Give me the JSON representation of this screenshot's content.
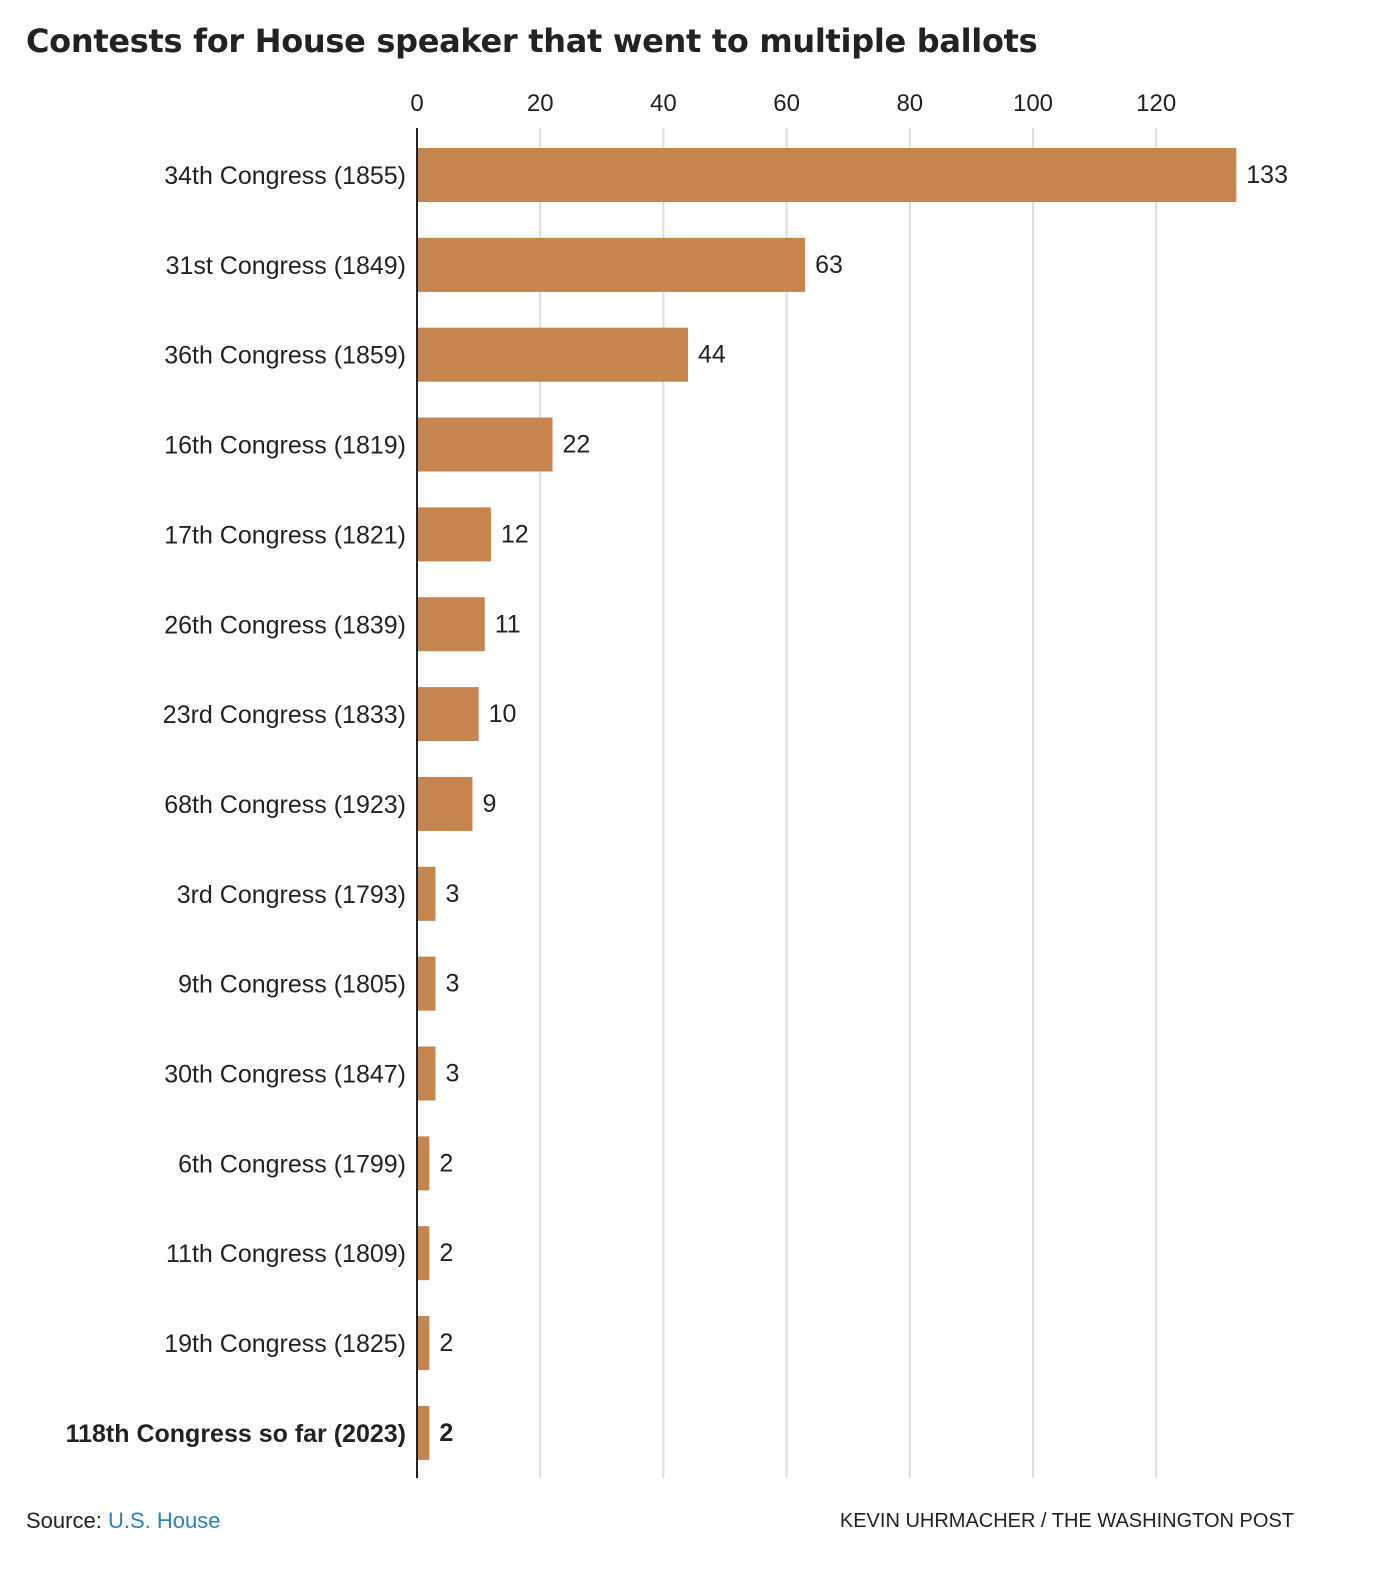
{
  "chart_data": {
    "type": "bar",
    "orientation": "horizontal",
    "title": "Contests for House speaker that went to multiple ballots",
    "categories": [
      "34th Congress (1855)",
      "31st Congress (1849)",
      "36th Congress (1859)",
      "16th Congress (1819)",
      "17th Congress (1821)",
      "26th Congress (1839)",
      "23rd Congress (1833)",
      "68th Congress (1923)",
      "3rd Congress (1793)",
      "9th Congress (1805)",
      "30th Congress (1847)",
      "6th Congress (1799)",
      "11th Congress (1809)",
      "19th Congress (1825)",
      "118th Congress so far (2023)"
    ],
    "values": [
      133,
      63,
      44,
      22,
      12,
      11,
      10,
      9,
      3,
      3,
      3,
      2,
      2,
      2,
      2
    ],
    "highlight_index": 14,
    "xlim": [
      0,
      133
    ],
    "x_ticks": [
      0,
      20,
      40,
      60,
      80,
      100,
      120
    ],
    "x_axis_position": "top",
    "grid": true,
    "bar_color": "#c6844e",
    "grid_color": "#dddddd"
  },
  "footer": {
    "source_label": "Source:",
    "source_link": "U.S. House",
    "credit": "KEVIN UHRMACHER / THE WASHINGTON POST"
  },
  "colors": {
    "link": "#2f7ec1",
    "text": "#222222"
  }
}
